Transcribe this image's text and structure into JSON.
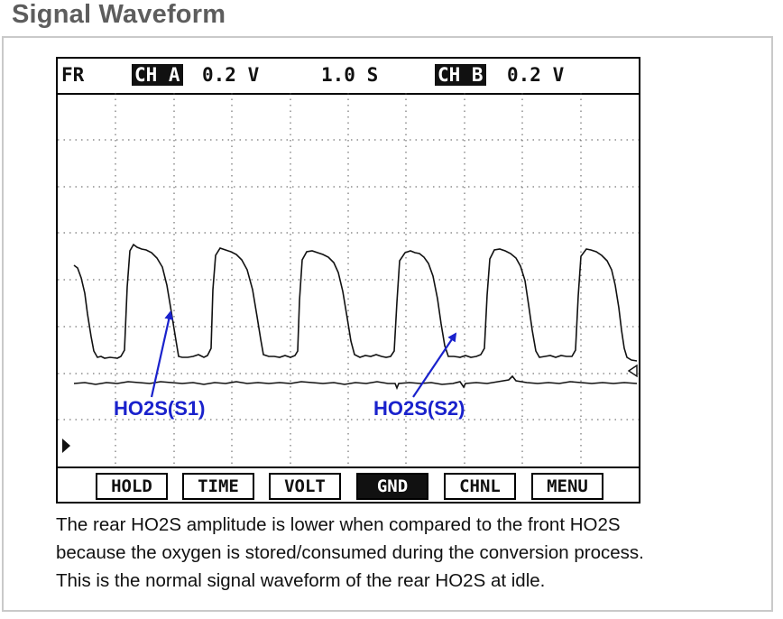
{
  "heading": "Signal Waveform",
  "scope": {
    "status": {
      "mode": "FR",
      "ch_a_tag": "CH A",
      "ch_a_scale": "0.2 V",
      "time_scale": "1.0 S",
      "ch_b_tag": "CH B",
      "ch_b_scale": "0.2 V"
    },
    "softkeys": [
      "HOLD",
      "TIME",
      "VOLT",
      "GND",
      "CHNL",
      "MENU"
    ],
    "active_softkey": "GND"
  },
  "annotations": {
    "s1": "HO2S(S1)",
    "s2": "HO2S(S2)",
    "arrow_color": "#1a22cc"
  },
  "caption": {
    "line1": "The rear HO2S amplitude is lower when compared to the front HO2S",
    "line2": "because the oxygen is stored/consumed during the conversion process.",
    "line3": "This is the normal signal waveform of the rear HO2S at idle."
  },
  "icons": {
    "trigger_marker": "triangle-right-icon",
    "ground_marker": "triangle-left-icon"
  }
}
